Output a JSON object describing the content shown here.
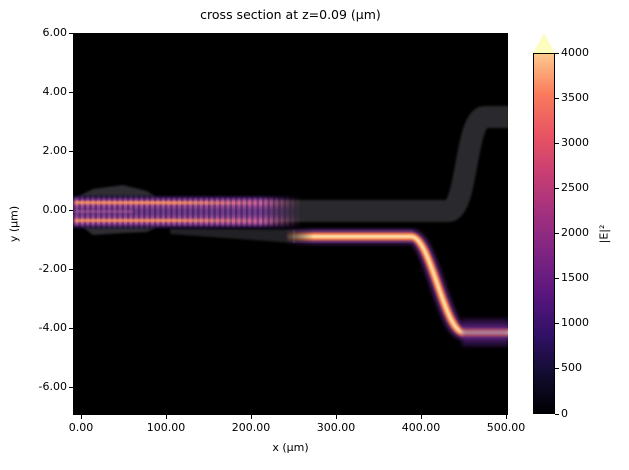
{
  "figure": {
    "title": "cross section at z=0.09 (μm)"
  },
  "axes": {
    "xlabel": "x (μm)",
    "ylabel": "y (μm)",
    "x_ticks": [
      "0.00",
      "100.00",
      "200.00",
      "300.00",
      "400.00",
      "500.00"
    ],
    "y_ticks": [
      "6.00",
      "4.00",
      "2.00",
      "0.00",
      "-2.00",
      "-4.00",
      "-6.00"
    ]
  },
  "colorbar": {
    "label": "|E|²",
    "ticks_top_to_bottom": [
      "4000",
      "3500",
      "3000",
      "2500",
      "2000",
      "1500",
      "1000",
      "500",
      "0"
    ],
    "colormap": "magma",
    "extend": "max",
    "extend_color": "#fcfdbf",
    "colors_bottom_to_top": [
      "#000004",
      "#120d31",
      "#331068",
      "#5a167e",
      "#7e2482",
      "#a3307e",
      "#c83e73",
      "#e95562",
      "#f97b5d",
      "#fec98d"
    ]
  },
  "chart_data": {
    "type": "heatmap",
    "title": "cross section at z=0.09 (μm)",
    "xlabel": "x (μm)",
    "ylabel": "y (μm)",
    "xlim": [
      -10,
      545
    ],
    "ylim": [
      -7,
      6.1
    ],
    "x_tick_values": [
      0,
      100,
      200,
      300,
      400,
      500
    ],
    "y_tick_values": [
      6,
      4,
      2,
      0,
      -2,
      -4,
      -6
    ],
    "value_label": "|E|²",
    "value_min": 0,
    "value_max": 4000,
    "value_tick_step": 500,
    "colormap": "magma",
    "colorbar_extend": "max",
    "background_value": 0,
    "features": [
      {
        "name": "input-taper-structure",
        "kind": "structure-overlay",
        "description": "translucent gray diamond/taper outline of input section",
        "x_um": [
          0,
          110
        ],
        "y_um": [
          -0.8,
          0.9
        ]
      },
      {
        "name": "mmi-field-band",
        "kind": "field",
        "description": "bright pink/magenta multimode band with vertical striations, two orange lobes near y=+0.25 and y=-0.3, dimmer center; fades out near x=260",
        "x_um": [
          -10,
          260
        ],
        "y_um": [
          -0.6,
          0.55
        ],
        "peak_value": 2600
      },
      {
        "name": "bus-waveguide-structure",
        "kind": "structure-overlay",
        "description": "gray unlit waveguide continuing straight at y≈0 to x≈450 then S-bending up, exiting right edge at y≈+3.2",
        "x_um": [
          110,
          545
        ],
        "y_um": [
          -0.4,
          3.6
        ]
      },
      {
        "name": "drop-waveguide-structure",
        "kind": "structure-overlay",
        "description": "thin gray tapered waveguide starting near x=110 at y≈-0.7 widening slightly toward x=260",
        "x_um": [
          110,
          260
        ],
        "y_um": [
          -1.05,
          -0.55
        ]
      },
      {
        "name": "drop-waveguide-field",
        "kind": "field",
        "description": "intense stripe with white-hot core at y≈-0.9 from x≈260 to x≈410, S-bend down between x≈410 and x≈465, then straight to right edge at y≈-4.15 with secondary magenta line below core",
        "x_um": [
          255,
          545
        ],
        "y_um": [
          -4.6,
          -0.55
        ],
        "peak_value": 4000
      }
    ]
  }
}
